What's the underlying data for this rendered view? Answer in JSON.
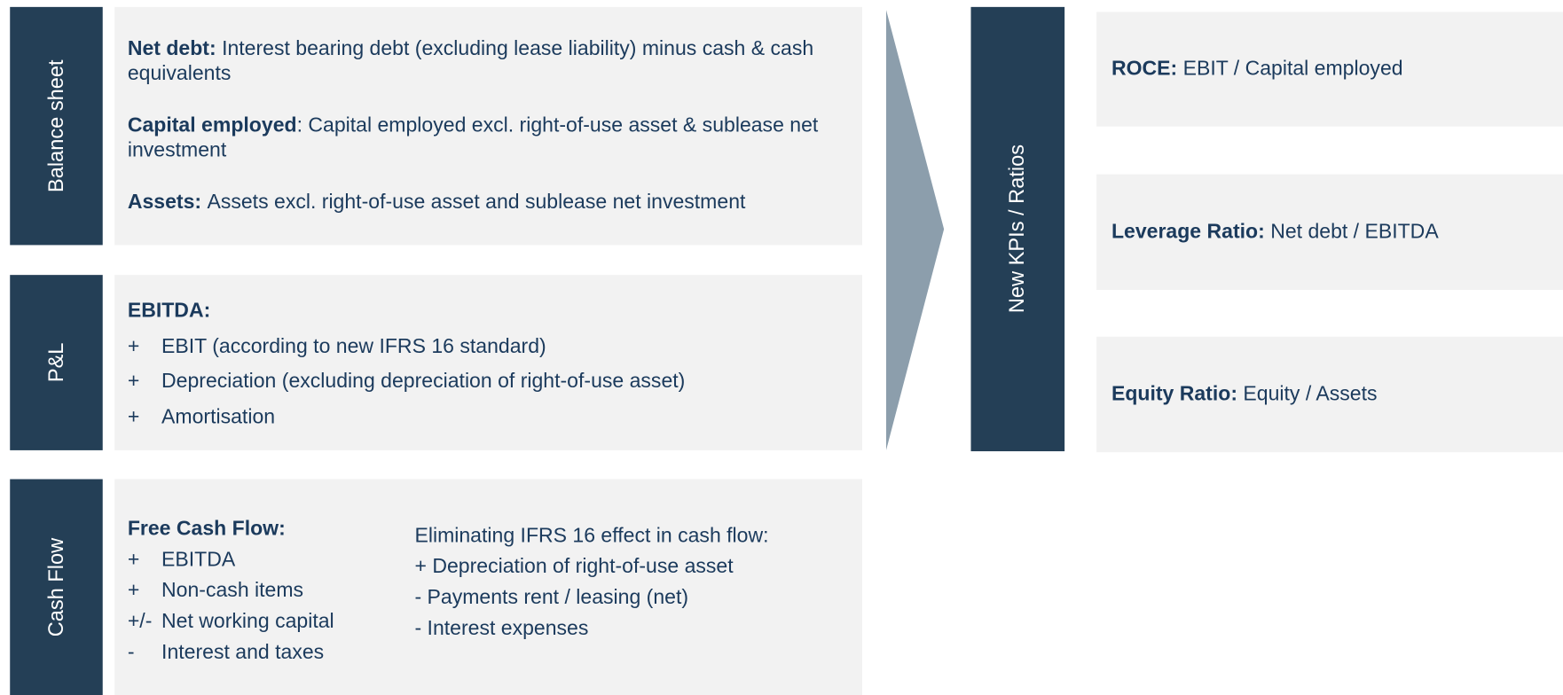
{
  "balance_sheet": {
    "label": "Balance sheet",
    "items": [
      {
        "term": "Net debt:",
        "text": "Interest bearing debt (excluding lease liability) minus cash & cash equivalents"
      },
      {
        "term": "Capital employed",
        "text": ": Capital employed excl. right-of-use asset & sublease net investment"
      },
      {
        "term": "Assets:",
        "text": "Assets excl. right-of-use asset and sublease net investment"
      }
    ]
  },
  "pl": {
    "label": "P&L",
    "heading": "EBITDA:",
    "lines": [
      {
        "sign": "+",
        "text": "EBIT (according to new IFRS 16 standard)"
      },
      {
        "sign": "+",
        "text": "Depreciation (excluding depreciation of right-of-use asset)"
      },
      {
        "sign": "+",
        "text": "Amortisation"
      }
    ]
  },
  "cash_flow": {
    "label": "Cash Flow",
    "heading": "Free Cash Flow:",
    "lines": [
      {
        "sign": "+",
        "text": "EBITDA"
      },
      {
        "sign": "+",
        "text": "Non-cash items"
      },
      {
        "sign": "+/-",
        "text": "Net working capital"
      },
      {
        "sign": "-",
        "text": "Interest and taxes"
      }
    ],
    "elimination": {
      "heading": "Eliminating IFRS 16 effect in cash flow:",
      "lines": [
        "+ Depreciation of right-of-use asset",
        "- Payments rent / leasing (net)",
        "- Interest expenses"
      ]
    }
  },
  "kpis": {
    "label": "New KPIs / Ratios",
    "items": [
      {
        "term": "ROCE:",
        "text": "EBIT / Capital employed"
      },
      {
        "term": "Leverage Ratio:",
        "text": "Net debt / EBITDA"
      },
      {
        "term": "Equity Ratio:",
        "text": "Equity / Assets"
      }
    ]
  }
}
